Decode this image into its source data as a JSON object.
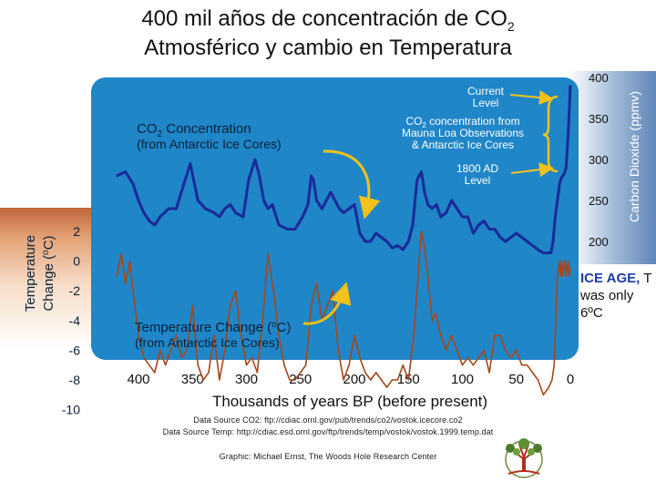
{
  "title_line1": "400 mil años de concentración de CO",
  "title_line1_sub": "2",
  "title_line2": "Atmosférico y cambio en Temperatura",
  "note": {
    "bold": "ICE AGE,",
    "rest": " T was only 6ºC"
  },
  "sources": {
    "co2": "Data Source CO2: ftp://cdiac.ornl.gov/pub/trends/co2/vostok.icecore.co2",
    "temp": "Data Source Temp: http://cdiac.esd.ornl.gov/ftp/trends/temp/vostok/vostok.1999.temp.dat",
    "graphic": "Graphic: Michael Ernst, The Woods Hole Research Center"
  },
  "colors": {
    "panel": "#1f86c8",
    "co2": "#1a2a9a",
    "temp": "#a8461a",
    "arrow": "#f4c21a",
    "text": "#0c2038"
  },
  "chart_data": {
    "type": "line",
    "title": "CO2 Concentration and Temperature Change",
    "xlabel": "Thousands of years BP (before present)",
    "x_ticks": [
      400,
      350,
      300,
      250,
      200,
      150,
      100,
      50,
      0
    ],
    "xlim": [
      425,
      0
    ],
    "left_axis": {
      "label_line1": "Temperature",
      "label_line2": "Change (",
      "label_unit": "o",
      "label_end": "C)",
      "ticks": [
        "2",
        "0",
        "-2",
        "-4",
        "-6",
        "-8",
        "-10"
      ],
      "values": [
        2,
        0,
        -2,
        -4,
        -6,
        -8,
        -10
      ]
    },
    "right_axis": {
      "label": "Carbon Dioxide (ppmv)",
      "ticks": [
        "400",
        "350",
        "300",
        "250",
        "200"
      ],
      "values": [
        400,
        350,
        300,
        250,
        200
      ]
    },
    "series": [
      {
        "name": "CO2 Concentration",
        "axis": "right",
        "x": [
          420,
          412,
          405,
          400,
          395,
          390,
          385,
          380,
          372,
          365,
          358,
          352,
          345,
          338,
          330,
          325,
          320,
          315,
          310,
          303,
          298,
          292,
          288,
          284,
          280,
          276,
          270,
          262,
          255,
          248,
          243,
          240,
          238,
          235,
          230,
          226,
          222,
          218,
          214,
          210,
          205,
          200,
          195,
          190,
          185,
          180,
          175,
          170,
          165,
          160,
          155,
          150,
          146,
          142,
          138,
          135,
          132,
          128,
          124,
          120,
          115,
          110,
          105,
          100,
          95,
          90,
          85,
          80,
          75,
          70,
          65,
          60,
          55,
          50,
          45,
          40,
          35,
          30,
          25,
          20,
          18,
          16,
          14,
          12,
          11,
          10,
          9,
          8,
          7,
          6,
          5,
          4,
          3,
          2,
          1,
          0
        ],
        "values": [
          280,
          285,
          270,
          250,
          235,
          225,
          220,
          230,
          240,
          240,
          270,
          295,
          250,
          240,
          235,
          230,
          240,
          245,
          235,
          230,
          275,
          300,
          280,
          250,
          240,
          245,
          220,
          215,
          215,
          230,
          245,
          280,
          275,
          250,
          240,
          250,
          260,
          250,
          240,
          235,
          240,
          245,
          210,
          200,
          200,
          210,
          205,
          200,
          192,
          195,
          190,
          200,
          220,
          275,
          285,
          260,
          245,
          240,
          245,
          230,
          235,
          250,
          240,
          230,
          230,
          210,
          220,
          225,
          215,
          215,
          205,
          200,
          205,
          210,
          205,
          200,
          195,
          190,
          186,
          186,
          186,
          200,
          230,
          250,
          260,
          270,
          275,
          278,
          280,
          282,
          285,
          290,
          310,
          330,
          360,
          390
        ]
      },
      {
        "name": "Temperature Change",
        "axis": "left",
        "x": [
          420,
          416,
          412,
          408,
          405,
          400,
          395,
          390,
          385,
          380,
          375,
          370,
          365,
          360,
          355,
          350,
          345,
          340,
          335,
          330,
          325,
          320,
          315,
          310,
          305,
          300,
          295,
          290,
          285,
          280,
          275,
          270,
          265,
          260,
          255,
          250,
          245,
          240,
          235,
          230,
          225,
          220,
          215,
          210,
          205,
          200,
          195,
          190,
          185,
          180,
          175,
          170,
          165,
          160,
          155,
          150,
          145,
          140,
          138,
          135,
          132,
          128,
          125,
          120,
          115,
          110,
          105,
          100,
          95,
          90,
          85,
          80,
          75,
          70,
          65,
          60,
          55,
          50,
          45,
          40,
          35,
          30,
          25,
          20,
          17,
          15,
          14,
          13,
          12,
          11,
          10,
          9,
          8,
          7,
          6,
          5,
          4,
          3,
          2,
          1,
          0
        ],
        "values": [
          -1,
          0.5,
          -1.5,
          0,
          -2,
          -5,
          -6.5,
          -7,
          -7.5,
          -6,
          -7,
          -6,
          -5,
          -6.5,
          -6,
          -3,
          -7,
          -8,
          -7.5,
          -5,
          -8,
          -6,
          -3,
          -2,
          -5,
          -7,
          -6.5,
          -7.5,
          -4,
          0.5,
          -2,
          -5,
          -7,
          -8,
          -8,
          -7.5,
          -7,
          -3,
          -1.5,
          -4,
          -3,
          -2,
          -6,
          -8,
          -7,
          -5,
          -6.5,
          -7.5,
          -8,
          -7.5,
          -8,
          -8.5,
          -8,
          -8,
          -7,
          -8,
          -5,
          0,
          2,
          1,
          -1,
          -4,
          -3.5,
          -5,
          -6,
          -5,
          -6,
          -7,
          -6.5,
          -7,
          -6.5,
          -6,
          -7.5,
          -5,
          -5,
          -6,
          -6.5,
          -6,
          -7,
          -7,
          -7.5,
          -8,
          -9,
          -8.5,
          -8,
          -7,
          -5,
          -3,
          -1,
          -0.5,
          0,
          -1,
          0,
          -1,
          -0.5,
          0,
          -1,
          -0.5,
          0,
          -1,
          -0.5
        ]
      }
    ],
    "annotations": {
      "co2_label_line1": "CO",
      "co2_label_sub": "2",
      "co2_label_rest": " Concentration",
      "co2_label_line2": "(from Antarctic Ice Cores)",
      "temp_label_line1": "Temperature Change (",
      "temp_label_unit": "o",
      "temp_label_end": "C)",
      "temp_label_line2": "(from Antarctic Ice Cores)",
      "current_line1": "Current",
      "current_line2": "Level",
      "mauna_line1_a": "CO",
      "mauna_line1_sub": "2",
      "mauna_line1_b": " concentration from",
      "mauna_line2": "Mauna Loa Observations",
      "mauna_line3": "& Antarctic Ice Cores",
      "ad_line1": "1800 AD",
      "ad_line2": "Level"
    }
  }
}
